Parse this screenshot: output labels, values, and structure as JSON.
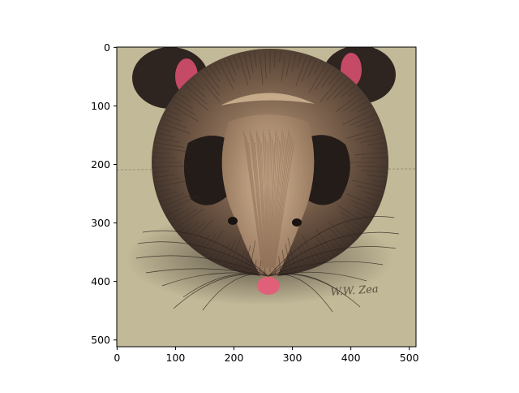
{
  "chart_data": {
    "type": "image",
    "title": "",
    "xlabel": "",
    "ylabel": "",
    "xlim": [
      -0.5,
      511.5
    ],
    "ylim": [
      511.5,
      -0.5
    ],
    "x_ticks": [
      0,
      100,
      200,
      300,
      400,
      500
    ],
    "y_ticks": [
      0,
      100,
      200,
      300,
      400,
      500
    ],
    "image_description": "illustration of a round brown-and-black mouse viewed head-on with large dark ears, pink inner ears and pink nose",
    "signature_text": "W.W. Zea",
    "colors": {
      "background": "#c2b998",
      "fur_dark": "#2e2420",
      "fur_mid": "#7a5f4a",
      "fur_light": "#c7a989",
      "ear_inner": "#c44a66",
      "nose": "#e0607a",
      "eye": "#181210"
    }
  }
}
